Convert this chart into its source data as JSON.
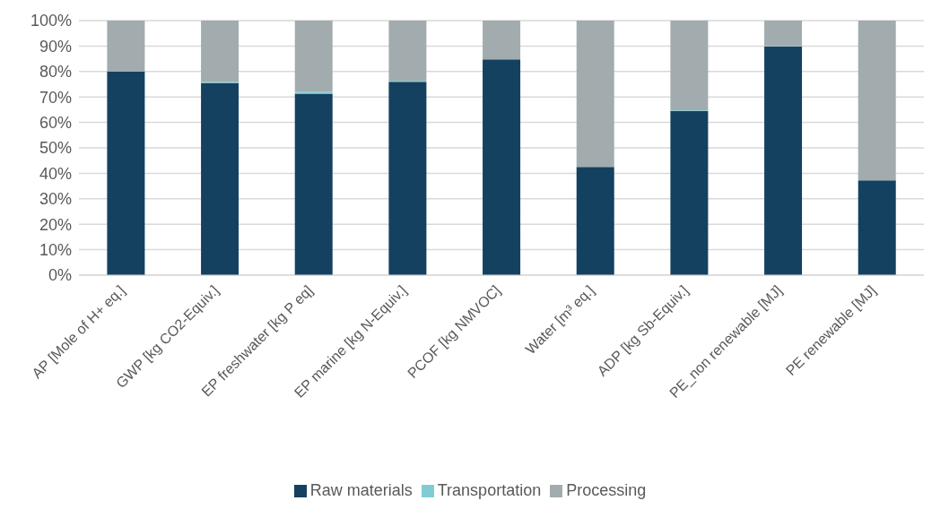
{
  "chart_data": {
    "type": "bar",
    "stacked": true,
    "categories": [
      "AP [Mole of H+ eq.]",
      "GWP [kg CO2-Equiv.]",
      "EP freshwater [kg P eq]",
      "EP marine [kg N-Equiv.]",
      "PCOF [kg NMVOC]",
      "Water [m³ eq.]",
      "ADP [kg Sb-Equiv.]",
      "PE_non renewable [MJ]",
      "PE renewable [MJ]"
    ],
    "series": [
      {
        "name": "Raw materials",
        "color": "#154160",
        "values": [
          80,
          75.5,
          71.3,
          76,
          84.8,
          42.5,
          64.5,
          89.8,
          37.2
        ]
      },
      {
        "name": "Transportation",
        "color": "#7fcdd3",
        "values": [
          null,
          0.5,
          0.7,
          0.4,
          null,
          null,
          0.3,
          0.2,
          null
        ]
      },
      {
        "name": "Processing",
        "color": "#a2acae",
        "values": [
          20,
          24,
          28,
          23.6,
          15.2,
          57.5,
          35.2,
          10,
          62.8
        ]
      }
    ],
    "ylim": [
      0,
      100
    ],
    "yticks": [
      {
        "value": 0,
        "label": "0%"
      },
      {
        "value": 10,
        "label": "10%"
      },
      {
        "value": 20,
        "label": "20%"
      },
      {
        "value": 30,
        "label": "30%"
      },
      {
        "value": 40,
        "label": "40%"
      },
      {
        "value": 50,
        "label": "50%"
      },
      {
        "value": 60,
        "label": "60%"
      },
      {
        "value": 70,
        "label": "70%"
      },
      {
        "value": 80,
        "label": "80%"
      },
      {
        "value": 90,
        "label": "90%"
      },
      {
        "value": 100,
        "label": "100%"
      }
    ],
    "grid": "y",
    "legend": "bottom"
  }
}
